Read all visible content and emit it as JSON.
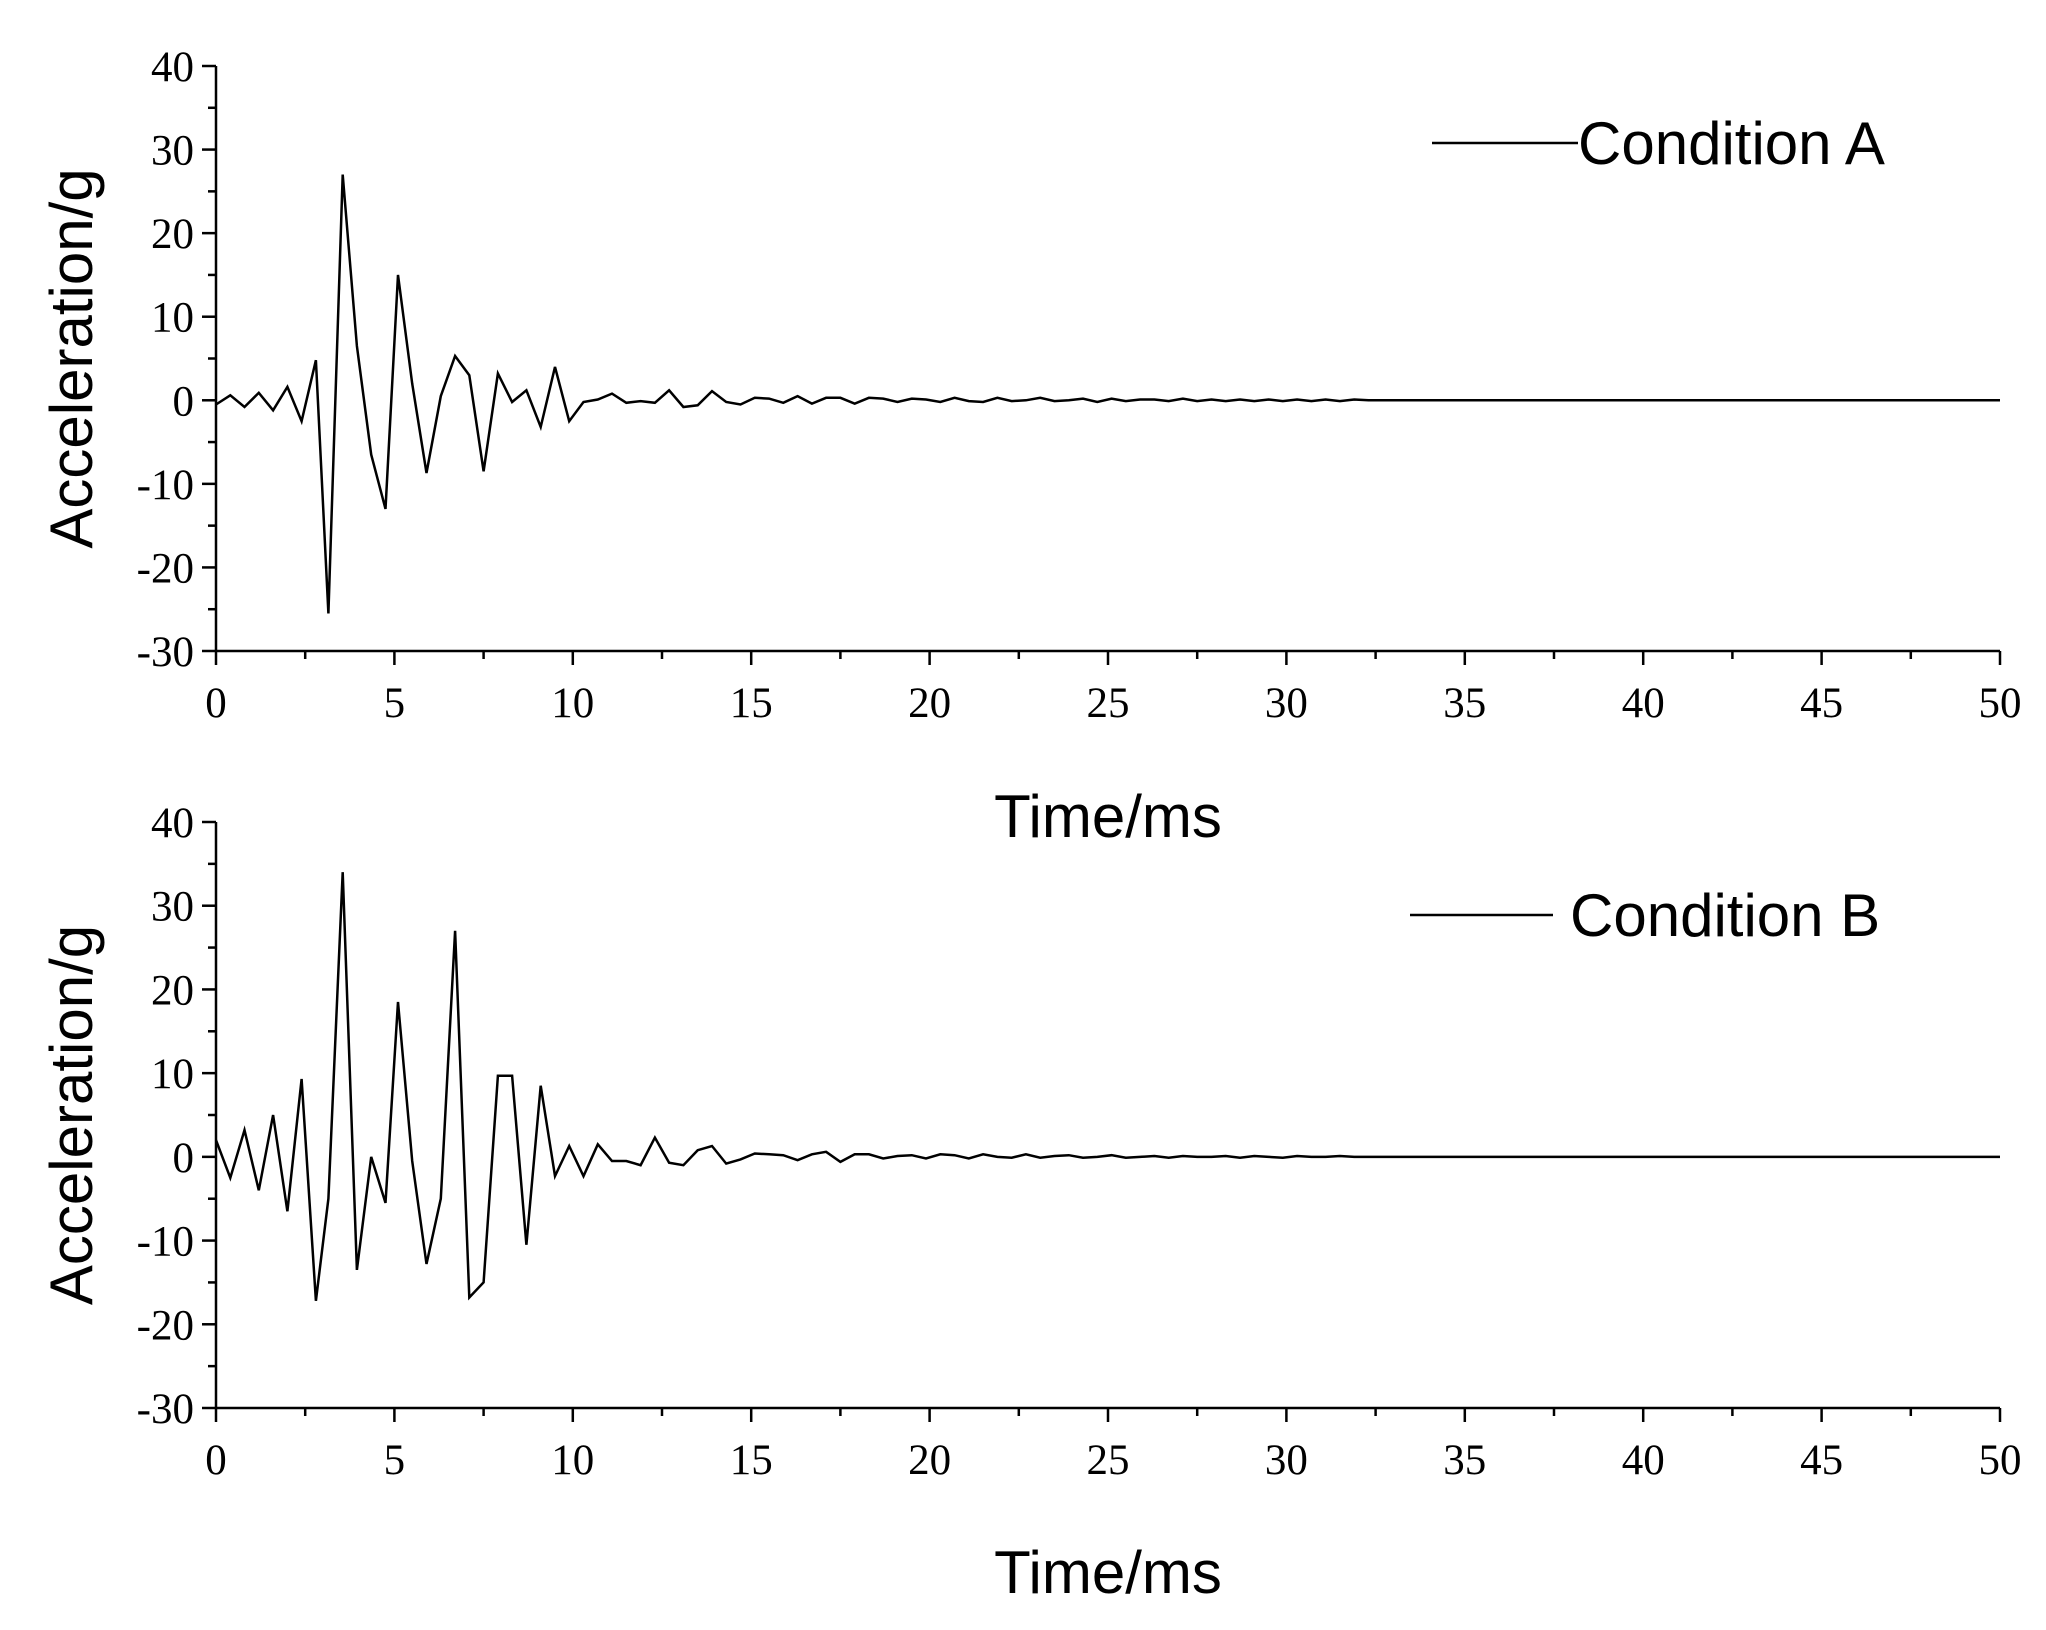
{
  "chart_data": [
    {
      "type": "line",
      "title": "",
      "xlabel": "Time/ms",
      "ylabel": "Acceleration/g",
      "xlim": [
        0,
        50
      ],
      "ylim": [
        -30,
        40
      ],
      "xticks": [
        "0",
        "5",
        "10",
        "15",
        "20",
        "25",
        "30",
        "35",
        "40",
        "45",
        "50"
      ],
      "yticks": [
        "-30",
        "-20",
        "-10",
        "0",
        "10",
        "20",
        "30",
        "40"
      ],
      "grid": false,
      "legend_position": "top-right",
      "series": [
        {
          "name": "Condition A",
          "color": "#000000",
          "x": [
            0,
            0.4,
            0.8,
            1.2,
            1.6,
            2.0,
            2.4,
            2.8,
            3.15,
            3.55,
            3.95,
            4.35,
            4.75,
            5.1,
            5.5,
            5.9,
            6.3,
            6.7,
            7.1,
            7.5,
            7.9,
            8.3,
            8.7,
            9.1,
            9.5,
            9.9,
            10.3,
            10.7,
            11.1,
            11.5,
            11.9,
            12.3,
            12.7,
            13.1,
            13.5,
            13.9,
            14.3,
            14.7,
            15.1,
            15.5,
            15.9,
            16.3,
            16.7,
            17.1,
            17.5,
            17.9,
            18.3,
            18.7,
            19.1,
            19.5,
            19.9,
            20.3,
            20.7,
            21.1,
            21.5,
            21.9,
            22.3,
            22.7,
            23.1,
            23.5,
            23.9,
            24.3,
            24.7,
            25.1,
            25.5,
            25.9,
            26.3,
            26.7,
            27.1,
            27.5,
            27.9,
            28.3,
            28.7,
            29.1,
            29.5,
            29.9,
            30.3,
            30.7,
            31.1,
            31.5,
            31.9,
            32.3,
            50
          ],
          "y": [
            -0.5,
            0.6,
            -0.8,
            0.9,
            -1.2,
            1.6,
            -2.5,
            4.8,
            -25.5,
            27.0,
            6.5,
            -6.5,
            -13.0,
            15.0,
            2.0,
            -8.7,
            0.5,
            5.3,
            3.0,
            -8.5,
            3.2,
            -0.2,
            1.2,
            -3.2,
            4.0,
            -2.5,
            -0.2,
            0.1,
            0.8,
            -0.3,
            -0.1,
            -0.3,
            1.2,
            -0.8,
            -0.6,
            1.1,
            -0.2,
            -0.5,
            0.3,
            0.2,
            -0.3,
            0.5,
            -0.4,
            0.3,
            0.3,
            -0.4,
            0.3,
            0.2,
            -0.2,
            0.2,
            0.1,
            -0.2,
            0.3,
            -0.1,
            -0.2,
            0.3,
            -0.1,
            0.0,
            0.3,
            -0.1,
            0.0,
            0.2,
            -0.2,
            0.2,
            -0.1,
            0.1,
            0.1,
            -0.1,
            0.2,
            -0.1,
            0.1,
            -0.1,
            0.1,
            -0.1,
            0.1,
            -0.1,
            0.1,
            -0.1,
            0.1,
            -0.1,
            0.1,
            0.0,
            0.0
          ]
        }
      ]
    },
    {
      "type": "line",
      "title": "",
      "xlabel": "Time/ms",
      "ylabel": "Acceleration/g",
      "xlim": [
        0,
        50
      ],
      "ylim": [
        -30,
        40
      ],
      "xticks": [
        "0",
        "5",
        "10",
        "15",
        "20",
        "25",
        "30",
        "35",
        "40",
        "45",
        "50"
      ],
      "yticks": [
        "-30",
        "-20",
        "-10",
        "0",
        "10",
        "20",
        "30",
        "40"
      ],
      "grid": false,
      "legend_position": "top-right",
      "series": [
        {
          "name": "Condition B",
          "color": "#000000",
          "x": [
            0,
            0.4,
            0.8,
            1.2,
            1.6,
            2.0,
            2.4,
            2.8,
            3.15,
            3.55,
            3.95,
            4.35,
            4.75,
            5.1,
            5.5,
            5.9,
            6.3,
            6.7,
            7.1,
            7.5,
            7.9,
            8.3,
            8.7,
            9.1,
            9.5,
            9.9,
            10.3,
            10.7,
            11.1,
            11.5,
            11.9,
            12.3,
            12.7,
            13.1,
            13.5,
            13.9,
            14.3,
            14.7,
            15.1,
            15.5,
            15.9,
            16.3,
            16.7,
            17.1,
            17.5,
            17.9,
            18.3,
            18.7,
            19.1,
            19.5,
            19.9,
            20.3,
            20.7,
            21.1,
            21.5,
            21.9,
            22.3,
            22.7,
            23.1,
            23.5,
            23.9,
            24.3,
            24.7,
            25.1,
            25.5,
            25.9,
            26.3,
            26.7,
            27.1,
            27.5,
            27.9,
            28.3,
            28.7,
            29.1,
            29.5,
            29.9,
            30.3,
            30.7,
            31.1,
            31.5,
            31.9,
            32.3,
            50
          ],
          "y": [
            2.0,
            -2.5,
            3.2,
            -4.0,
            5.0,
            -6.5,
            9.3,
            -17.2,
            -5.0,
            34.0,
            -13.5,
            0.0,
            -5.5,
            18.5,
            -0.5,
            -12.8,
            -5.0,
            27.0,
            -16.8,
            -15.0,
            9.7,
            9.7,
            -10.5,
            8.5,
            -2.3,
            1.3,
            -2.3,
            1.5,
            -0.5,
            -0.5,
            -1.0,
            2.3,
            -0.7,
            -1.0,
            0.8,
            1.3,
            -0.8,
            -0.3,
            0.4,
            0.3,
            0.2,
            -0.4,
            0.3,
            0.6,
            -0.6,
            0.3,
            0.3,
            -0.2,
            0.1,
            0.2,
            -0.2,
            0.3,
            0.2,
            -0.2,
            0.3,
            0.0,
            -0.1,
            0.3,
            -0.1,
            0.1,
            0.2,
            -0.1,
            0.0,
            0.2,
            -0.1,
            0.0,
            0.1,
            -0.1,
            0.1,
            0.0,
            0.0,
            0.1,
            -0.1,
            0.1,
            0.0,
            -0.1,
            0.1,
            0.0,
            0.0,
            0.1,
            0.0,
            0.0,
            0.0
          ]
        }
      ]
    }
  ]
}
